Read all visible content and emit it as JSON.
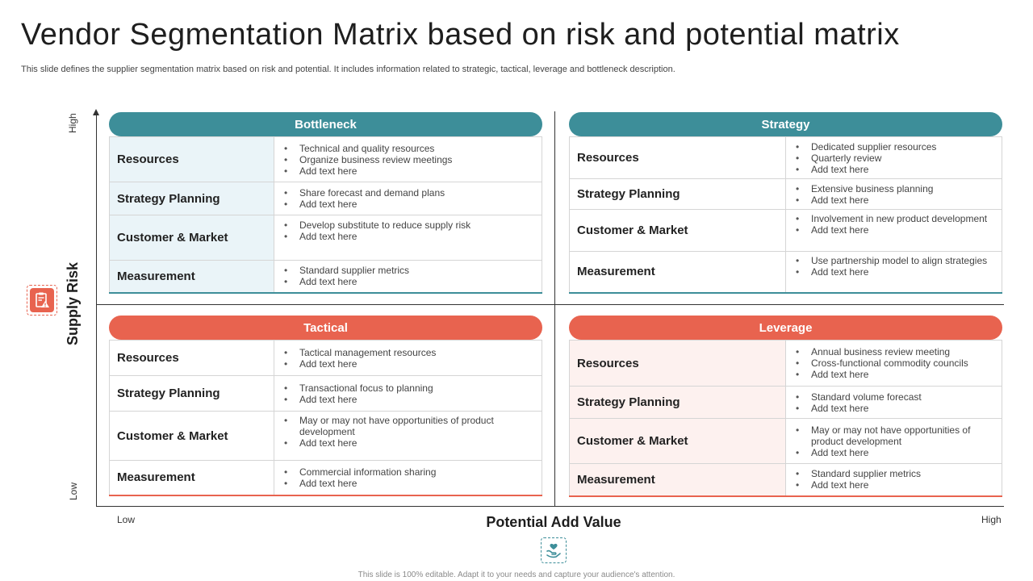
{
  "title": "Vendor Segmentation Matrix based on risk and potential matrix",
  "subtitle": "This slide defines the supplier segmentation matrix based on risk and potential. It includes information related to strategic, tactical, leverage and bottleneck description.",
  "axes": {
    "y_title": "Supply Risk",
    "y_high": "High",
    "y_low": "Low",
    "x_title": "Potential Add Value",
    "x_low": "Low",
    "x_high": "High"
  },
  "icons": {
    "risk": "risk-clipboard-icon",
    "footer": "hand-care-icon"
  },
  "colors": {
    "teal": "#3d8e99",
    "coral": "#e8634f"
  },
  "quadrants": {
    "bottleneck": {
      "header": "Bottleneck",
      "rows": [
        {
          "label": "Resources",
          "items": [
            "Technical and quality resources",
            "Organize business review meetings",
            "Add text here"
          ]
        },
        {
          "label": "Strategy Planning",
          "items": [
            "Share forecast and demand plans",
            "Add text here"
          ]
        },
        {
          "label": "Customer & Market",
          "items": [
            "Develop substitute to reduce supply risk",
            "Add text here"
          ]
        },
        {
          "label": "Measurement",
          "items": [
            "Standard supplier metrics",
            "Add text here"
          ]
        }
      ]
    },
    "strategy": {
      "header": "Strategy",
      "rows": [
        {
          "label": "Resources",
          "items": [
            "Dedicated supplier resources",
            "Quarterly review",
            "Add text here"
          ]
        },
        {
          "label": "Strategy Planning",
          "items": [
            "Extensive business planning",
            "Add text here"
          ]
        },
        {
          "label": "Customer & Market",
          "items": [
            "Involvement in new product development",
            "Add text here"
          ]
        },
        {
          "label": "Measurement",
          "items": [
            "Use partnership model to align strategies",
            "Add text here"
          ]
        }
      ]
    },
    "tactical": {
      "header": "Tactical",
      "rows": [
        {
          "label": "Resources",
          "items": [
            "Tactical management resources",
            "Add text here"
          ]
        },
        {
          "label": "Strategy Planning",
          "items": [
            "Transactional focus to planning",
            "Add text here"
          ]
        },
        {
          "label": "Customer & Market",
          "items": [
            "May or may not have opportunities of product development",
            "Add text here"
          ]
        },
        {
          "label": "Measurement",
          "items": [
            "Commercial information sharing",
            "Add text here"
          ]
        }
      ]
    },
    "leverage": {
      "header": "Leverage",
      "rows": [
        {
          "label": "Resources",
          "items": [
            "Annual business review meeting",
            "Cross-functional commodity councils",
            "Add text here"
          ]
        },
        {
          "label": "Strategy Planning",
          "items": [
            "Standard volume forecast",
            "Add text here"
          ]
        },
        {
          "label": "Customer & Market",
          "items": [
            "May or may not have opportunities of product development",
            "Add text here"
          ]
        },
        {
          "label": "Measurement",
          "items": [
            "Standard supplier metrics",
            "Add text here"
          ]
        }
      ]
    }
  },
  "footer_note": "This slide is 100% editable. Adapt it to your needs and capture your audience's attention."
}
